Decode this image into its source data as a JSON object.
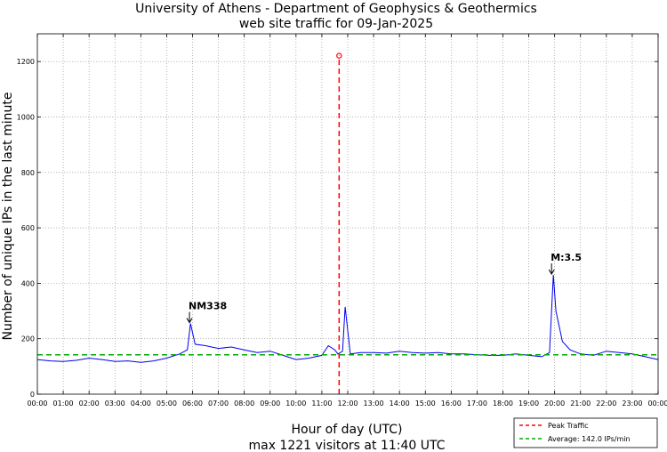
{
  "chart_data": {
    "type": "line",
    "title": "University of Athens - Department of Geophysics & Geothermics",
    "subtitle": "web site traffic for 09-Jan-2025",
    "xlabel": "Hour of day (UTC)",
    "xlabel_sub": "max 1221 visitors at 11:40 UTC",
    "ylabel": "Number of unique IPs in the last minute",
    "xlim": [
      0,
      24
    ],
    "ylim": [
      0,
      1300
    ],
    "x_ticks": [
      "00:00",
      "01:00",
      "02:00",
      "03:00",
      "04:00",
      "05:00",
      "06:00",
      "07:00",
      "08:00",
      "09:00",
      "10:00",
      "11:00",
      "12:00",
      "13:00",
      "14:00",
      "15:00",
      "16:00",
      "17:00",
      "18:00",
      "19:00",
      "20:00",
      "21:00",
      "22:00",
      "23:00",
      "00:00"
    ],
    "y_ticks": [
      0,
      200,
      400,
      600,
      800,
      1000,
      1200
    ],
    "grid": true,
    "legend_position": "bottom-right",
    "series": {
      "color": "#0000ee",
      "x": [
        0,
        0.5,
        1,
        1.5,
        2,
        2.5,
        3,
        3.5,
        4,
        4.5,
        5,
        5.5,
        5.8,
        5.92,
        6.1,
        6.5,
        7,
        7.5,
        8,
        8.5,
        9,
        9.5,
        10,
        10.5,
        11,
        11.25,
        11.5,
        11.62,
        11.8,
        11.9,
        12.1,
        12.5,
        13,
        13.5,
        14,
        14.5,
        15,
        15.5,
        16,
        16.5,
        17,
        17.5,
        18,
        18.5,
        19,
        19.5,
        19.8,
        19.95,
        20.05,
        20.3,
        20.6,
        21,
        21.5,
        22,
        22.5,
        23,
        23.5,
        24
      ],
      "values": [
        125,
        120,
        118,
        122,
        130,
        125,
        118,
        120,
        115,
        120,
        130,
        145,
        160,
        255,
        180,
        175,
        165,
        170,
        160,
        150,
        155,
        140,
        125,
        130,
        140,
        175,
        160,
        145,
        155,
        315,
        145,
        150,
        150,
        148,
        155,
        150,
        148,
        150,
        145,
        145,
        142,
        140,
        140,
        145,
        140,
        135,
        150,
        430,
        300,
        190,
        160,
        145,
        140,
        155,
        150,
        145,
        135,
        125
      ]
    },
    "peak": {
      "x": 11.667,
      "value": 1221,
      "color": "#ff0000"
    },
    "average": {
      "value": 142.0,
      "color": "#00aa00"
    },
    "annotations": [
      {
        "text": "NM338",
        "x": 5.95,
        "y": 255
      },
      {
        "text": "M:3.5",
        "x": 19.95,
        "y": 430
      }
    ],
    "legend": [
      {
        "label": "Peak Traffic",
        "color": "#ff0000",
        "style": "dashed"
      },
      {
        "label": "Average: 142.0 IPs/min",
        "color": "#00aa00",
        "style": "dashed"
      }
    ]
  }
}
